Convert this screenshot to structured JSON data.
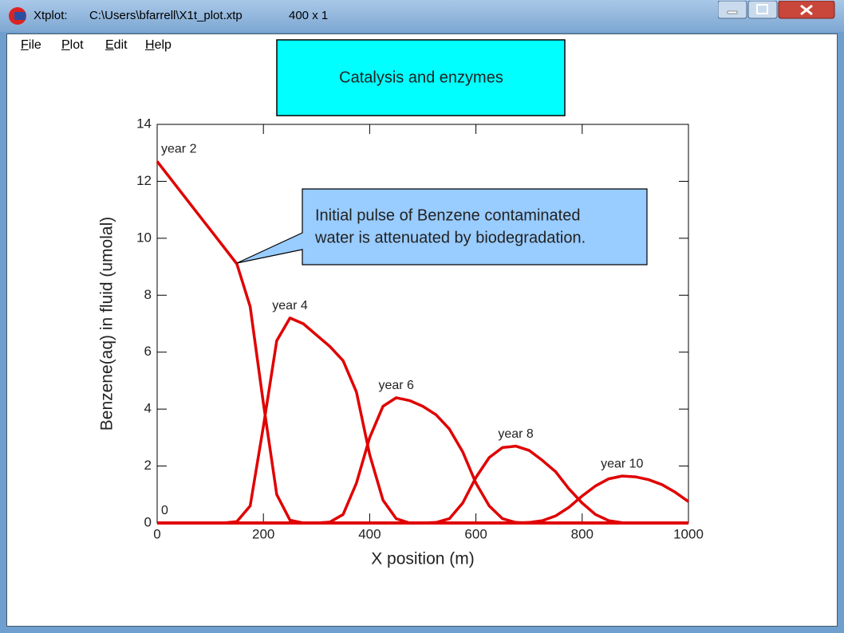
{
  "window": {
    "title": "Xtplot:",
    "file": "C:\\Users\\bfarrell\\X1t_plot.xtp",
    "size": "400 x 1",
    "menu": [
      "File",
      "Plot",
      "Edit",
      "Help"
    ]
  },
  "chart_data": {
    "type": "line",
    "title": "Catalysis and enzymes",
    "annotation": [
      "Initial pulse of Benzene contaminated",
      "water is attenuated by biodegradation."
    ],
    "x_label": "X position (m)",
    "y_label": "Benzene(aq) in fluid (umolal)",
    "xlim": [
      0,
      1000
    ],
    "xticks": [
      0,
      200,
      400,
      600,
      800,
      1000
    ],
    "ylim": [
      0,
      14
    ],
    "yticks": [
      0,
      2,
      4,
      6,
      8,
      10,
      12,
      14
    ],
    "x": [
      0,
      25,
      50,
      75,
      100,
      125,
      150,
      175,
      200,
      225,
      250,
      275,
      300,
      325,
      350,
      375,
      400,
      425,
      450,
      475,
      500,
      525,
      550,
      575,
      600,
      625,
      650,
      675,
      700,
      725,
      750,
      775,
      800,
      825,
      850,
      875,
      900,
      925,
      950,
      975,
      1000
    ],
    "series": [
      {
        "name": "0",
        "color": "#e00000",
        "values": [
          0,
          0,
          0,
          0,
          0,
          0,
          0,
          0,
          0,
          0,
          0,
          0,
          0,
          0,
          0,
          0,
          0,
          0,
          0,
          0,
          0,
          0,
          0,
          0,
          0,
          0,
          0,
          0,
          0,
          0,
          0,
          0,
          0,
          0,
          0,
          0,
          0,
          0,
          0,
          0,
          0
        ]
      },
      {
        "name": "year 2",
        "color": "#e00000",
        "values": [
          12.7,
          12.1,
          11.5,
          10.9,
          10.3,
          9.7,
          9.1,
          7.6,
          4.2,
          1.0,
          0.1,
          0,
          0,
          0,
          0,
          0,
          0,
          0,
          0,
          0,
          0,
          0,
          0,
          0,
          0,
          0,
          0,
          0,
          0,
          0,
          0,
          0,
          0,
          0,
          0,
          0,
          0,
          0,
          0,
          0,
          0
        ]
      },
      {
        "name": "year 4",
        "color": "#e00000",
        "values": [
          0,
          0,
          0,
          0,
          0,
          0,
          0.05,
          0.6,
          3.4,
          6.4,
          7.2,
          7.0,
          6.6,
          6.2,
          5.7,
          4.6,
          2.4,
          0.8,
          0.15,
          0,
          0,
          0,
          0,
          0,
          0,
          0,
          0,
          0,
          0,
          0,
          0,
          0,
          0,
          0,
          0,
          0,
          0,
          0,
          0,
          0,
          0
        ]
      },
      {
        "name": "year 6",
        "color": "#e00000",
        "values": [
          0,
          0,
          0,
          0,
          0,
          0,
          0,
          0,
          0,
          0,
          0,
          0,
          0,
          0.03,
          0.3,
          1.4,
          3.0,
          4.1,
          4.4,
          4.3,
          4.1,
          3.8,
          3.3,
          2.5,
          1.4,
          0.6,
          0.15,
          0.02,
          0,
          0,
          0,
          0,
          0,
          0,
          0,
          0,
          0,
          0,
          0,
          0,
          0
        ]
      },
      {
        "name": "year 8",
        "color": "#e00000",
        "values": [
          0,
          0,
          0,
          0,
          0,
          0,
          0,
          0,
          0,
          0,
          0,
          0,
          0,
          0,
          0,
          0,
          0,
          0,
          0,
          0,
          0,
          0.02,
          0.15,
          0.7,
          1.6,
          2.3,
          2.65,
          2.7,
          2.55,
          2.2,
          1.8,
          1.2,
          0.7,
          0.3,
          0.08,
          0.01,
          0,
          0,
          0,
          0,
          0
        ]
      },
      {
        "name": "year 10",
        "color": "#e00000",
        "values": [
          0,
          0,
          0,
          0,
          0,
          0,
          0,
          0,
          0,
          0,
          0,
          0,
          0,
          0,
          0,
          0,
          0,
          0,
          0,
          0,
          0,
          0,
          0,
          0,
          0,
          0,
          0,
          0,
          0.02,
          0.08,
          0.25,
          0.55,
          0.95,
          1.3,
          1.55,
          1.65,
          1.62,
          1.52,
          1.35,
          1.08,
          0.75
        ]
      }
    ]
  }
}
